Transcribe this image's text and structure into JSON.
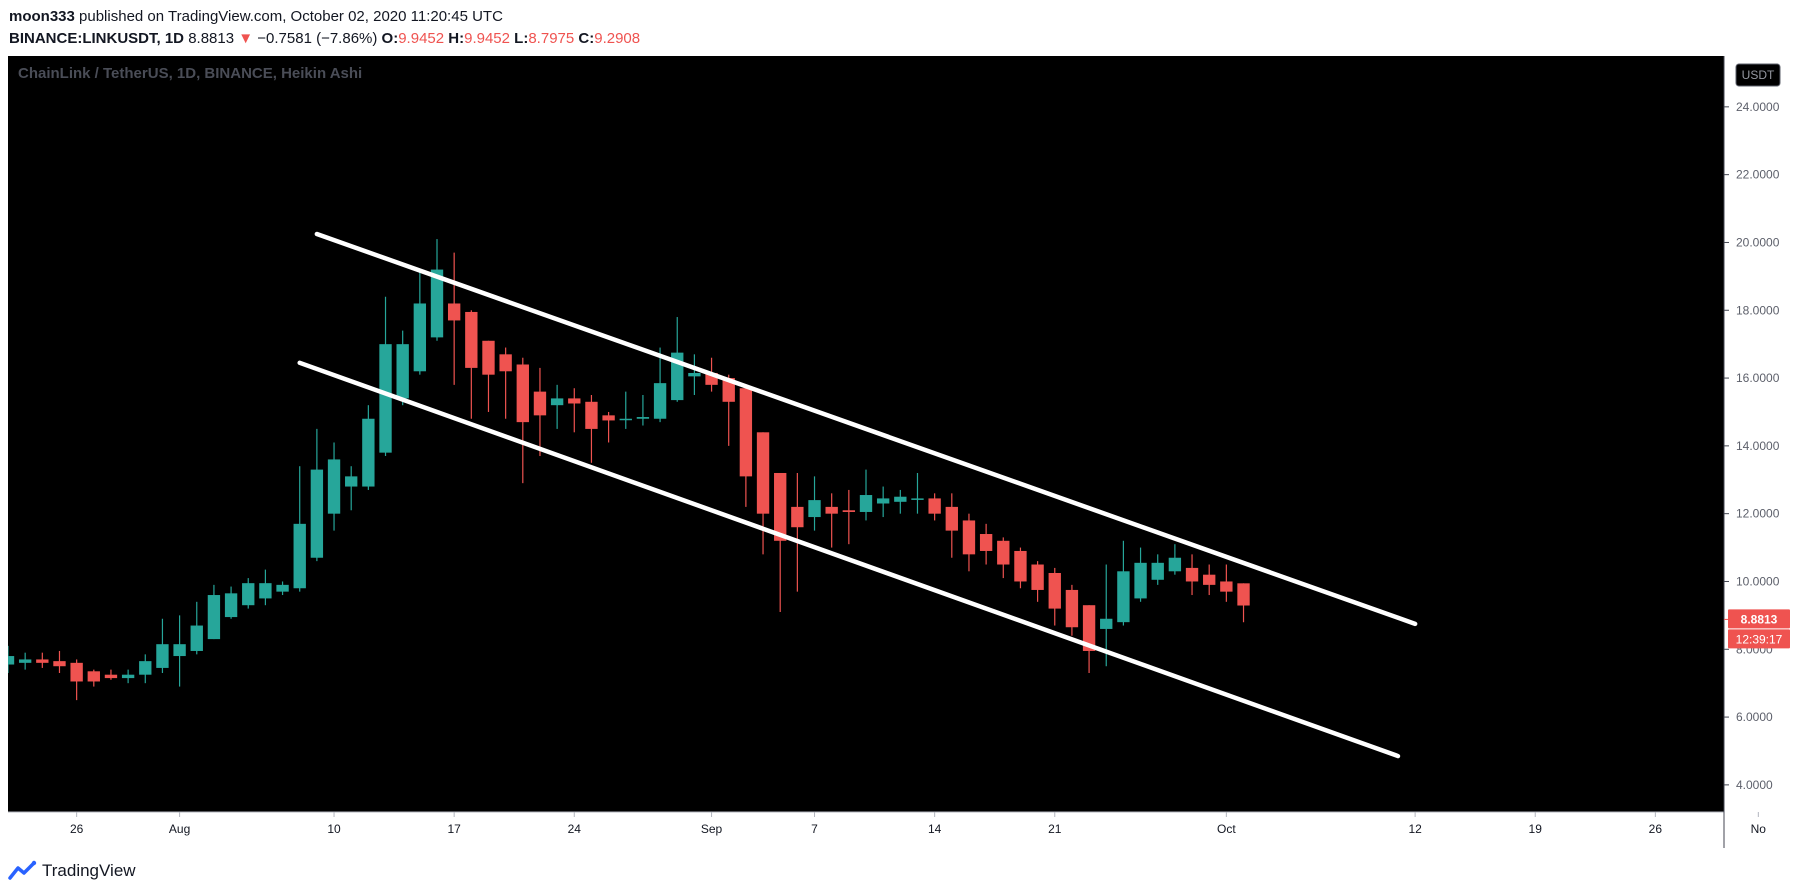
{
  "header": {
    "author": "moon333",
    "published_text": "published on TradingView.com, October 02, 2020 11:20:45 UTC"
  },
  "ohlc": {
    "symbol": "BINANCE:LINKUSDT, 1D",
    "last": "8.8813",
    "arrow": "▼",
    "change": "−0.7581 (−7.86%)",
    "o_label": "O:",
    "o_value": "9.9452",
    "h_label": "H:",
    "h_value": "9.9452",
    "l_label": "L:",
    "l_value": "8.7975",
    "c_label": "C:",
    "c_value": "9.2908"
  },
  "chart_data": {
    "type": "candlestick",
    "title": "ChainLink / TetherUS, 1D, BINANCE, Heikin Ashi",
    "currency_badge": "USDT",
    "ylim": [
      3.2,
      25.5
    ],
    "yticks": [
      "4.0000",
      "6.0000",
      "8.0000",
      "10.0000",
      "12.0000",
      "14.0000",
      "16.0000",
      "18.0000",
      "20.0000",
      "22.0000",
      "24.0000"
    ],
    "x_range": [
      "2020-07-22",
      "2020-10-30"
    ],
    "xticks": [
      {
        "date": "2020-07-26",
        "label": "26"
      },
      {
        "date": "2020-08-01",
        "label": "Aug"
      },
      {
        "date": "2020-08-10",
        "label": "10"
      },
      {
        "date": "2020-08-17",
        "label": "17"
      },
      {
        "date": "2020-08-24",
        "label": "24"
      },
      {
        "date": "2020-09-01",
        "label": "Sep"
      },
      {
        "date": "2020-09-07",
        "label": "7"
      },
      {
        "date": "2020-09-14",
        "label": "14"
      },
      {
        "date": "2020-09-21",
        "label": "21"
      },
      {
        "date": "2020-10-01",
        "label": "Oct"
      },
      {
        "date": "2020-10-12",
        "label": "12"
      },
      {
        "date": "2020-10-19",
        "label": "19"
      },
      {
        "date": "2020-10-26",
        "label": "26"
      },
      {
        "date": "2020-11-01",
        "label": "No"
      }
    ],
    "candles": [
      {
        "date": "2020-07-22",
        "o": 7.55,
        "h": 8.1,
        "l": 7.3,
        "c": 7.8
      },
      {
        "date": "2020-07-23",
        "o": 7.6,
        "h": 7.9,
        "l": 7.4,
        "c": 7.7
      },
      {
        "date": "2020-07-24",
        "o": 7.7,
        "h": 7.9,
        "l": 7.45,
        "c": 7.6
      },
      {
        "date": "2020-07-25",
        "o": 7.65,
        "h": 7.95,
        "l": 7.3,
        "c": 7.5
      },
      {
        "date": "2020-07-26",
        "o": 7.6,
        "h": 7.7,
        "l": 6.5,
        "c": 7.05
      },
      {
        "date": "2020-07-27",
        "o": 7.35,
        "h": 7.4,
        "l": 6.9,
        "c": 7.05
      },
      {
        "date": "2020-07-28",
        "o": 7.25,
        "h": 7.4,
        "l": 7.1,
        "c": 7.15
      },
      {
        "date": "2020-07-29",
        "o": 7.15,
        "h": 7.4,
        "l": 7.0,
        "c": 7.25
      },
      {
        "date": "2020-07-30",
        "o": 7.25,
        "h": 7.85,
        "l": 7.0,
        "c": 7.65
      },
      {
        "date": "2020-07-31",
        "o": 7.45,
        "h": 8.9,
        "l": 7.3,
        "c": 8.15
      },
      {
        "date": "2020-08-01",
        "o": 7.8,
        "h": 9.0,
        "l": 6.9,
        "c": 8.15
      },
      {
        "date": "2020-08-02",
        "o": 7.95,
        "h": 9.4,
        "l": 7.85,
        "c": 8.7
      },
      {
        "date": "2020-08-03",
        "o": 8.3,
        "h": 9.9,
        "l": 8.3,
        "c": 9.6
      },
      {
        "date": "2020-08-04",
        "o": 8.95,
        "h": 9.85,
        "l": 8.9,
        "c": 9.65
      },
      {
        "date": "2020-08-05",
        "o": 9.3,
        "h": 10.1,
        "l": 9.2,
        "c": 9.95
      },
      {
        "date": "2020-08-06",
        "o": 9.5,
        "h": 10.35,
        "l": 9.3,
        "c": 9.95
      },
      {
        "date": "2020-08-07",
        "o": 9.7,
        "h": 10.0,
        "l": 9.6,
        "c": 9.9
      },
      {
        "date": "2020-08-08",
        "o": 9.8,
        "h": 13.4,
        "l": 9.7,
        "c": 11.7
      },
      {
        "date": "2020-08-09",
        "o": 10.7,
        "h": 14.5,
        "l": 10.6,
        "c": 13.3
      },
      {
        "date": "2020-08-10",
        "o": 12.0,
        "h": 14.1,
        "l": 11.5,
        "c": 13.6
      },
      {
        "date": "2020-08-11",
        "o": 12.8,
        "h": 13.4,
        "l": 12.1,
        "c": 13.1
      },
      {
        "date": "2020-08-12",
        "o": 12.8,
        "h": 15.2,
        "l": 12.7,
        "c": 14.8
      },
      {
        "date": "2020-08-13",
        "o": 13.8,
        "h": 18.4,
        "l": 13.7,
        "c": 17.0
      },
      {
        "date": "2020-08-14",
        "o": 15.4,
        "h": 17.4,
        "l": 15.2,
        "c": 17.0
      },
      {
        "date": "2020-08-15",
        "o": 16.2,
        "h": 19.2,
        "l": 16.1,
        "c": 18.2
      },
      {
        "date": "2020-08-16",
        "o": 17.2,
        "h": 20.1,
        "l": 17.1,
        "c": 19.2
      },
      {
        "date": "2020-08-17",
        "o": 18.2,
        "h": 19.7,
        "l": 15.8,
        "c": 17.7
      },
      {
        "date": "2020-08-18",
        "o": 17.95,
        "h": 18.0,
        "l": 14.8,
        "c": 16.3
      },
      {
        "date": "2020-08-19",
        "o": 17.1,
        "h": 17.1,
        "l": 15.0,
        "c": 16.1
      },
      {
        "date": "2020-08-20",
        "o": 16.7,
        "h": 16.9,
        "l": 14.8,
        "c": 16.2
      },
      {
        "date": "2020-08-21",
        "o": 16.4,
        "h": 16.6,
        "l": 12.9,
        "c": 14.7
      },
      {
        "date": "2020-08-22",
        "o": 15.6,
        "h": 16.3,
        "l": 13.7,
        "c": 14.9
      },
      {
        "date": "2020-08-23",
        "o": 15.2,
        "h": 15.8,
        "l": 14.5,
        "c": 15.4
      },
      {
        "date": "2020-08-24",
        "o": 15.4,
        "h": 15.7,
        "l": 14.4,
        "c": 15.25
      },
      {
        "date": "2020-08-25",
        "o": 15.3,
        "h": 15.5,
        "l": 13.5,
        "c": 14.5
      },
      {
        "date": "2020-08-26",
        "o": 14.9,
        "h": 15.0,
        "l": 14.1,
        "c": 14.75
      },
      {
        "date": "2020-08-27",
        "o": 14.8,
        "h": 15.6,
        "l": 14.5,
        "c": 14.8
      },
      {
        "date": "2020-08-28",
        "o": 14.8,
        "h": 15.5,
        "l": 14.6,
        "c": 14.85
      },
      {
        "date": "2020-08-29",
        "o": 14.8,
        "h": 16.9,
        "l": 14.7,
        "c": 15.85
      },
      {
        "date": "2020-08-30",
        "o": 15.35,
        "h": 17.8,
        "l": 15.3,
        "c": 16.75
      },
      {
        "date": "2020-08-31",
        "o": 16.05,
        "h": 16.7,
        "l": 15.5,
        "c": 16.15
      },
      {
        "date": "2020-09-01",
        "o": 16.15,
        "h": 16.6,
        "l": 15.6,
        "c": 15.8
      },
      {
        "date": "2020-09-02",
        "o": 16.0,
        "h": 16.1,
        "l": 14.0,
        "c": 15.3
      },
      {
        "date": "2020-09-03",
        "o": 15.7,
        "h": 15.8,
        "l": 12.2,
        "c": 13.1
      },
      {
        "date": "2020-09-04",
        "o": 14.4,
        "h": 14.4,
        "l": 10.8,
        "c": 12.0
      },
      {
        "date": "2020-09-05",
        "o": 13.2,
        "h": 13.2,
        "l": 9.1,
        "c": 11.2
      },
      {
        "date": "2020-09-06",
        "o": 12.2,
        "h": 13.2,
        "l": 9.7,
        "c": 11.6
      },
      {
        "date": "2020-09-07",
        "o": 11.9,
        "h": 13.1,
        "l": 11.5,
        "c": 12.4
      },
      {
        "date": "2020-09-08",
        "o": 12.2,
        "h": 12.6,
        "l": 11.0,
        "c": 12.0
      },
      {
        "date": "2020-09-09",
        "o": 12.1,
        "h": 12.7,
        "l": 11.1,
        "c": 12.05
      },
      {
        "date": "2020-09-10",
        "o": 12.05,
        "h": 13.3,
        "l": 11.8,
        "c": 12.55
      },
      {
        "date": "2020-09-11",
        "o": 12.3,
        "h": 12.8,
        "l": 11.9,
        "c": 12.45
      },
      {
        "date": "2020-09-12",
        "o": 12.35,
        "h": 12.7,
        "l": 12.0,
        "c": 12.5
      },
      {
        "date": "2020-09-13",
        "o": 12.45,
        "h": 13.2,
        "l": 12.0,
        "c": 12.45
      },
      {
        "date": "2020-09-14",
        "o": 12.45,
        "h": 12.6,
        "l": 11.8,
        "c": 12.0
      },
      {
        "date": "2020-09-15",
        "o": 12.2,
        "h": 12.6,
        "l": 10.7,
        "c": 11.5
      },
      {
        "date": "2020-09-16",
        "o": 11.8,
        "h": 12.0,
        "l": 10.3,
        "c": 10.8
      },
      {
        "date": "2020-09-17",
        "o": 11.4,
        "h": 11.7,
        "l": 10.5,
        "c": 10.9
      },
      {
        "date": "2020-09-18",
        "o": 11.2,
        "h": 11.3,
        "l": 10.1,
        "c": 10.5
      },
      {
        "date": "2020-09-19",
        "o": 10.9,
        "h": 11.0,
        "l": 9.8,
        "c": 10.0
      },
      {
        "date": "2020-09-20",
        "o": 10.5,
        "h": 10.6,
        "l": 9.4,
        "c": 9.75
      },
      {
        "date": "2020-09-21",
        "o": 10.25,
        "h": 10.4,
        "l": 8.7,
        "c": 9.2
      },
      {
        "date": "2020-09-22",
        "o": 9.75,
        "h": 9.9,
        "l": 8.4,
        "c": 8.65
      },
      {
        "date": "2020-09-23",
        "o": 9.3,
        "h": 9.3,
        "l": 7.3,
        "c": 7.95
      },
      {
        "date": "2020-09-24",
        "o": 8.6,
        "h": 10.5,
        "l": 7.5,
        "c": 8.9
      },
      {
        "date": "2020-09-25",
        "o": 8.8,
        "h": 11.2,
        "l": 8.7,
        "c": 10.3
      },
      {
        "date": "2020-09-26",
        "o": 9.5,
        "h": 11.0,
        "l": 9.4,
        "c": 10.55
      },
      {
        "date": "2020-09-27",
        "o": 10.05,
        "h": 10.8,
        "l": 9.9,
        "c": 10.55
      },
      {
        "date": "2020-09-28",
        "o": 10.3,
        "h": 11.1,
        "l": 10.2,
        "c": 10.7
      },
      {
        "date": "2020-09-29",
        "o": 10.4,
        "h": 10.8,
        "l": 9.6,
        "c": 10.0
      },
      {
        "date": "2020-09-30",
        "o": 10.2,
        "h": 10.5,
        "l": 9.6,
        "c": 9.9
      },
      {
        "date": "2020-10-01",
        "o": 10.0,
        "h": 10.5,
        "l": 9.4,
        "c": 9.7
      },
      {
        "date": "2020-10-02",
        "o": 9.9452,
        "h": 9.9452,
        "l": 8.7975,
        "c": 9.2908
      }
    ],
    "trendlines": [
      {
        "from": {
          "date": "2020-08-09",
          "value": 20.25
        },
        "to": {
          "date": "2020-10-12",
          "value": 8.75
        },
        "color": "#ffffff"
      },
      {
        "from": {
          "date": "2020-08-08",
          "value": 16.45
        },
        "to": {
          "date": "2020-10-11",
          "value": 4.85
        },
        "color": "#ffffff"
      }
    ],
    "last_price": "8.8813",
    "countdown": "12:39:17",
    "up_color": "#26a69a",
    "down_color": "#ef5350",
    "background": "#000000"
  },
  "footer": {
    "brand": "TradingView"
  }
}
